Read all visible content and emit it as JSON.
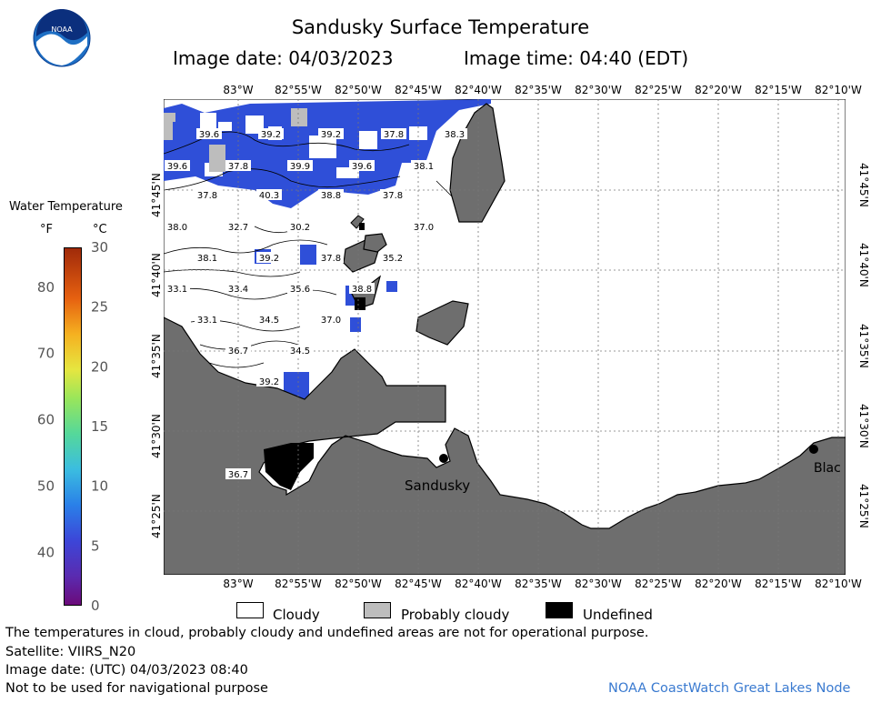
{
  "header": {
    "title": "Sandusky Surface Temperature",
    "image_date": "Image date: 04/03/2023",
    "image_time": "Image time: 04:40 (EDT)"
  },
  "logo": {
    "text": "NOAA"
  },
  "colorbar": {
    "title": "Water Temperature",
    "unit_f": "°F",
    "unit_c": "°C",
    "f_ticks": [
      "40",
      "50",
      "60",
      "70",
      "80"
    ],
    "c_ticks": [
      "0",
      "5",
      "10",
      "15",
      "20",
      "25",
      "30"
    ],
    "f_range": [
      32,
      86
    ],
    "c_range": [
      0,
      30
    ]
  },
  "map": {
    "lon_labels": [
      "83°W",
      "82°55'W",
      "82°50'W",
      "82°45'W",
      "82°40'W",
      "82°35'W",
      "82°30'W",
      "82°25'W",
      "82°20'W",
      "82°15'W",
      "82°10'W"
    ],
    "lat_labels": [
      "41°45'N",
      "41°40'N",
      "41°35'N",
      "41°30'N",
      "41°25'N"
    ],
    "temperatures": [
      "39.6",
      "39.2",
      "39.2",
      "37.8",
      "38.3",
      "39.6",
      "37.8",
      "39.9",
      "39.6",
      "38.1",
      "37.8",
      "40.3",
      "38.8",
      "37.8",
      "38.0",
      "32.7",
      "30.2",
      "37.0",
      "38.1",
      "39.2",
      "37.8",
      "35.2",
      "33.1",
      "33.4",
      "35.6",
      "38.8",
      "33.1",
      "34.5",
      "37.0",
      "36.7",
      "34.5",
      "39.2",
      "36.7"
    ],
    "cities": {
      "sandusky": "Sandusky",
      "blac": "Blac"
    },
    "colors": {
      "land": "#6e6e6e",
      "water_blue": "#2f4fd8",
      "cloudy": "#ffffff",
      "probably_cloudy": "#bdbdbd",
      "undefined": "#000000"
    }
  },
  "legend": {
    "cloudy": "Cloudy",
    "probably_cloudy": "Probably cloudy",
    "undefined": "Undefined"
  },
  "footer": {
    "line1": "The temperatures in cloud, probably cloudy and undefined areas are not for operational purpose.",
    "line2": "Satellite: VIIRS_N20",
    "line3": "Image date: (UTC) 04/03/2023  08:40",
    "line4": "Not to be used for navigational purpose",
    "credit": "NOAA CoastWatch Great Lakes Node"
  }
}
